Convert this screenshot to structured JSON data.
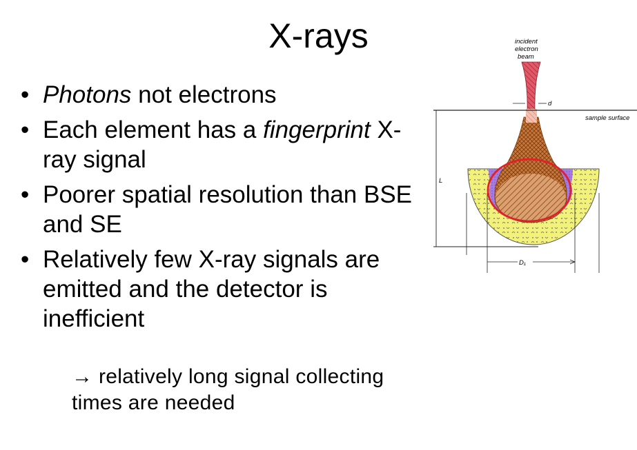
{
  "slide": {
    "title": "X-rays",
    "bullets": [
      {
        "parts": [
          {
            "text": "Photons",
            "italic": true
          },
          {
            "text": " not electrons",
            "italic": false
          }
        ]
      },
      {
        "parts": [
          {
            "text": "Each element has a ",
            "italic": false
          },
          {
            "text": "fingerprint",
            "italic": true
          },
          {
            "text": " X-ray signal",
            "italic": false
          }
        ]
      },
      {
        "parts": [
          {
            "text": "Poorer spatial resolution than BSE and SE",
            "italic": false
          }
        ]
      },
      {
        "parts": [
          {
            "text": "Relatively few X-ray signals are emitted and the detector is inefficient",
            "italic": false
          }
        ]
      }
    ],
    "sub_bullet": {
      "arrow": "→",
      "text": " relatively long signal collecting times are needed"
    }
  },
  "diagram": {
    "labels": {
      "incident_1": "incident",
      "incident_2": "electron",
      "incident_3": "beam",
      "d": "d",
      "sample_surface": "sample surface",
      "L": "L",
      "D1": "D₁"
    },
    "colors": {
      "beam": "#d9445a",
      "interaction": "#c8782e",
      "halo": "#9a6fd6",
      "outer": "#f0f06a",
      "highlight": "#e0202a"
    }
  }
}
